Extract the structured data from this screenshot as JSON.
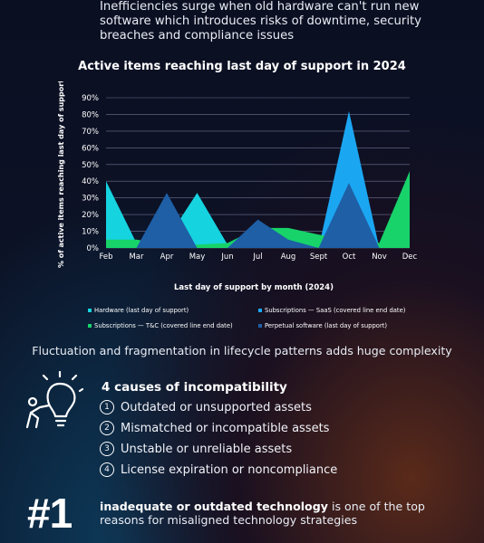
{
  "intro": {
    "text": "Inefficiencies surge when old hardware can't run new software which introduces risks of downtime, security breaches and compliance issues"
  },
  "chart_data": {
    "type": "area",
    "title": "Active items reaching last day of support in 2024",
    "xlabel": "Last day of support by month (2024)",
    "ylabel": "% of active items reaching last day of support",
    "categories": [
      "Feb",
      "Mar",
      "Apr",
      "May",
      "Jun",
      "Jul",
      "Aug",
      "Sept",
      "Oct",
      "Nov",
      "Dec"
    ],
    "yticks": [
      "0%",
      "10%",
      "20%",
      "30%",
      "40%",
      "50%",
      "60%",
      "70%",
      "80%",
      "90%"
    ],
    "ylim": [
      0,
      90
    ],
    "grid": true,
    "legend_position": "bottom",
    "series": [
      {
        "name": "Hardware (last day of support)",
        "color": "#16d3e0",
        "values": [
          40,
          3,
          5,
          33,
          2,
          1,
          1,
          1,
          1,
          1,
          1
        ]
      },
      {
        "name": "Subscriptions — SaaS (covered line end date)",
        "color": "#1ba6f2",
        "values": [
          0,
          0,
          0,
          0,
          0,
          0,
          0,
          0,
          82,
          0,
          0
        ]
      },
      {
        "name": "Subscriptions — T&C (covered line end date)",
        "color": "#17d36a",
        "values": [
          5,
          5,
          2,
          2,
          3,
          12,
          12,
          8,
          5,
          3,
          46
        ]
      },
      {
        "name": "Perpetual software (last day of support)",
        "color": "#1e5fa6",
        "values": [
          0,
          0,
          33,
          0,
          0,
          17,
          5,
          0,
          39,
          0,
          0
        ]
      }
    ]
  },
  "fluctuation": {
    "text": "Fluctuation and fragmentation in lifecycle patterns adds huge complexity"
  },
  "causes": {
    "title": "4 causes of incompatibility",
    "icon": "lightbulb-person-icon",
    "items": [
      {
        "num": "1",
        "text": "Outdated or unsupported assets"
      },
      {
        "num": "2",
        "text": "Mismatched or incompatible assets"
      },
      {
        "num": "3",
        "text": "Unstable or unreliable assets"
      },
      {
        "num": "4",
        "text": "License expiration or noncompliance"
      }
    ]
  },
  "stat": {
    "number": "#1",
    "bold_text": "inadequate or outdated technology",
    "rest_text": " is one of the top reasons for misaligned technology strategies"
  }
}
